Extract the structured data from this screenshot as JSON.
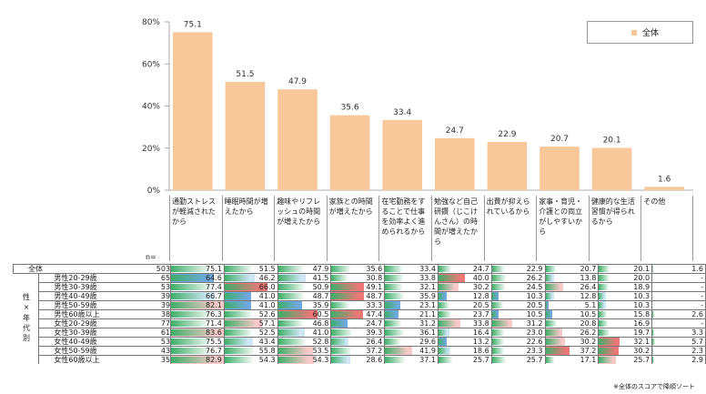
{
  "chart_data": {
    "type": "bar",
    "categories": [
      "通勤ストレスが軽減されたから",
      "睡眠時間が増えたから",
      "趣味やリフレッシュの時間が増えたから",
      "家族との時間が増えたから",
      "在宅勤務をすることで仕事を効率よく進められるから",
      "勉強など自己研鑽（じこけんさん）の時間が増えたから",
      "出費が抑えられているから",
      "家事・育児・介護との両立がしやすいから",
      "健康的な生活習慣が得られるから",
      "その他"
    ],
    "series": [
      {
        "name": "全体",
        "values": [
          75.1,
          51.5,
          47.9,
          35.6,
          33.4,
          24.7,
          22.9,
          20.7,
          20.1,
          1.6
        ]
      }
    ],
    "ylim": [
      0,
      80
    ],
    "yticks": [
      "0%",
      "20%",
      "40%",
      "60%",
      "80%"
    ],
    "bar_color": "#f9c89a",
    "legend_placement": "top-right"
  },
  "table": {
    "n_label": "n=",
    "side_label": "性×年代別",
    "rows": [
      {
        "label": "全体",
        "n": "503",
        "values": [
          "75.1",
          "51.5",
          "47.9",
          "35.6",
          "33.4",
          "24.7",
          "22.9",
          "20.7",
          "20.1",
          "1.6"
        ]
      },
      {
        "label": "男性20-29歳",
        "n": "65",
        "values": [
          "64.6",
          "46.2",
          "41.5",
          "30.8",
          "33.8",
          "40.0",
          "26.2",
          "13.8",
          "20.0",
          "-"
        ]
      },
      {
        "label": "男性30-39歳",
        "n": "53",
        "values": [
          "77.4",
          "66.0",
          "50.9",
          "49.1",
          "32.1",
          "30.2",
          "24.5",
          "26.4",
          "18.9",
          "-"
        ]
      },
      {
        "label": "男性40-49歳",
        "n": "39",
        "values": [
          "66.7",
          "41.0",
          "48.7",
          "48.7",
          "35.9",
          "12.8",
          "10.3",
          "12.8",
          "10.3",
          "-"
        ]
      },
      {
        "label": "男性50-59歳",
        "n": "39",
        "values": [
          "82.1",
          "41.0",
          "35.9",
          "33.3",
          "23.1",
          "20.5",
          "20.5",
          "5.1",
          "10.3",
          "-"
        ]
      },
      {
        "label": "男性60歳以上",
        "n": "38",
        "values": [
          "76.3",
          "52.6",
          "60.5",
          "47.4",
          "21.1",
          "23.7",
          "10.5",
          "10.5",
          "15.8",
          "2.6"
        ]
      },
      {
        "label": "女性20-29歳",
        "n": "77",
        "values": [
          "71.4",
          "57.1",
          "46.8",
          "24.7",
          "31.2",
          "33.8",
          "31.2",
          "20.8",
          "16.9",
          "-"
        ]
      },
      {
        "label": "女性30-39歳",
        "n": "61",
        "values": [
          "83.6",
          "52.5",
          "41.0",
          "39.3",
          "36.1",
          "16.4",
          "23.0",
          "26.2",
          "19.7",
          "3.3"
        ]
      },
      {
        "label": "女性40-49歳",
        "n": "53",
        "values": [
          "75.5",
          "43.4",
          "52.8",
          "26.4",
          "29.6",
          "13.2",
          "22.6",
          "30.2",
          "32.1",
          "5.7"
        ]
      },
      {
        "label": "女性50-59歳",
        "n": "43",
        "values": [
          "76.7",
          "55.8",
          "53.5",
          "37.2",
          "41.9",
          "18.6",
          "23.3",
          "37.2",
          "30.2",
          "2.3"
        ]
      },
      {
        "label": "女性60歳以上",
        "n": "35",
        "values": [
          "82.9",
          "54.3",
          "54.3",
          "28.6",
          "37.1",
          "25.7",
          "25.7",
          "17.1",
          "25.7",
          "2.9"
        ]
      }
    ],
    "colors": {
      "bar_green": "#3fae6a",
      "high_strong": "#ee7777",
      "high_light": "#f8c9c9",
      "low_strong": "#6fa8dc",
      "low_light": "#cfe7f5"
    }
  },
  "note": "※全体のスコアで降順ソート"
}
